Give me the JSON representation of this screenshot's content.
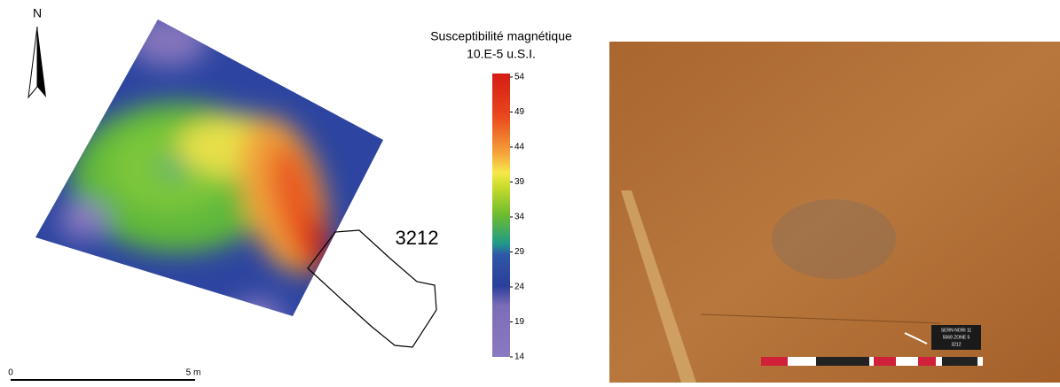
{
  "map": {
    "north": "N",
    "scale": {
      "start": "0",
      "end": "5 m"
    },
    "feature_label": "3212"
  },
  "legend": {
    "title": "Susceptibilité magnétique",
    "unit": "10.E-5 u.S.I.",
    "range": [
      14,
      54
    ],
    "ticks": [
      14,
      19,
      24,
      29,
      34,
      39,
      44,
      49,
      54
    ]
  },
  "photo": {
    "tag": [
      "SERN NORI 11",
      "5569 ZONE 5",
      "3212"
    ]
  }
}
